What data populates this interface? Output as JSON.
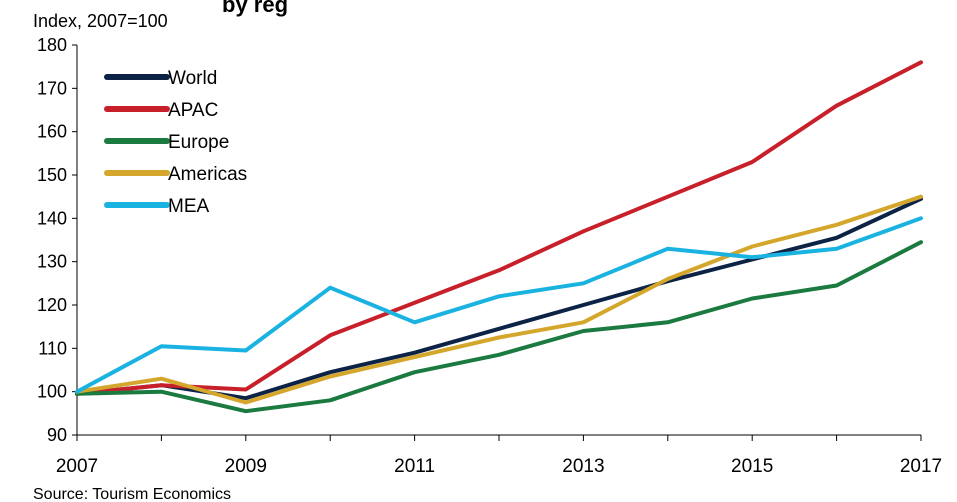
{
  "chart_data": {
    "type": "line",
    "title_partial": "by reg",
    "ylabel": "Index, 2007=100",
    "source": "Source: Tourism Economics",
    "x": [
      2007,
      2008,
      2009,
      2010,
      2011,
      2012,
      2013,
      2014,
      2015,
      2016,
      2017
    ],
    "xticks": [
      "2007",
      "2009",
      "2011",
      "2013",
      "2015",
      "2017"
    ],
    "yticks": [
      "90",
      "100",
      "110",
      "120",
      "130",
      "140",
      "150",
      "160",
      "170",
      "180"
    ],
    "ylim": [
      90,
      180
    ],
    "xlim": [
      2007,
      2017
    ],
    "grid": false,
    "legend_position": "top-left",
    "series": [
      {
        "name": "World",
        "color": "#0d2346",
        "values": [
          99.5,
          101.5,
          98.5,
          104.5,
          109,
          114.5,
          120,
          125.5,
          130.5,
          135.5,
          144.5
        ]
      },
      {
        "name": "APAC",
        "color": "#c8202a",
        "values": [
          99.5,
          101.5,
          100.5,
          113,
          120.5,
          128,
          137,
          145,
          153,
          166,
          176
        ]
      },
      {
        "name": "Europe",
        "color": "#1b7a3f",
        "values": [
          99.5,
          100,
          95.5,
          98,
          104.5,
          108.5,
          114,
          116,
          121.5,
          124.5,
          134.5
        ]
      },
      {
        "name": "Americas",
        "color": "#d4a72c",
        "values": [
          100,
          103,
          97.5,
          103.5,
          108,
          112.5,
          116,
          126,
          133.5,
          138.5,
          145
        ]
      },
      {
        "name": "MEA",
        "color": "#1ab2e0",
        "values": [
          100,
          110.5,
          109.5,
          124,
          116,
          122,
          125,
          133,
          131,
          133,
          140
        ]
      }
    ]
  }
}
